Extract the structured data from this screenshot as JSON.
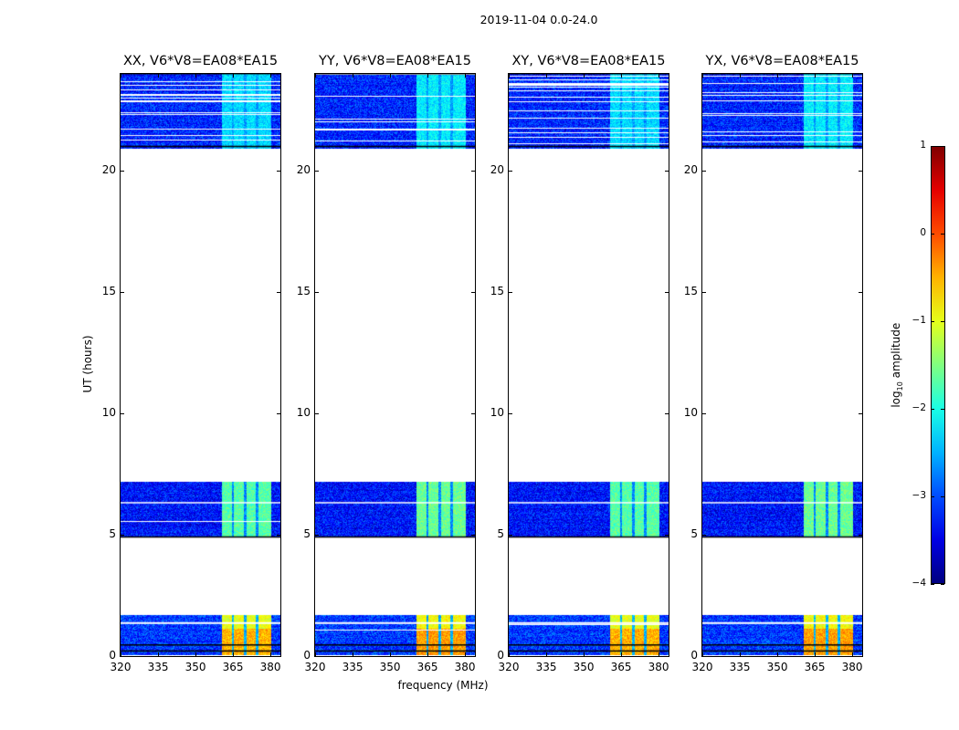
{
  "suptitle": "2019-11-04 0.0-24.0",
  "chart_data": {
    "type": "heatmap",
    "title": "2019-11-04 0.0-24.0",
    "xlabel": "frequency (MHz)",
    "ylabel": "UT (hours)",
    "xlim": [
      320,
      384
    ],
    "ylim": [
      0,
      24
    ],
    "xticks": [
      320,
      335,
      350,
      365,
      380
    ],
    "yticks": [
      0,
      5,
      10,
      15,
      20
    ],
    "panels": [
      {
        "title": "XX, V6*V8=EA08*EA15"
      },
      {
        "title": "YY, V6*V8=EA08*EA15"
      },
      {
        "title": "XY, V6*V8=EA08*EA15"
      },
      {
        "title": "YX, V6*V8=EA08*EA15"
      }
    ],
    "data_blocks": [
      {
        "start_hr": 0.05,
        "end_hr": 1.7,
        "background_log_amp": -3.1,
        "rfi_log_amp": -1.0
      },
      {
        "start_hr": 4.9,
        "end_hr": 7.2,
        "background_log_amp": -3.3,
        "rfi_log_amp": -1.7
      },
      {
        "start_hr": 20.9,
        "end_hr": 24.0,
        "background_log_amp": -3.2,
        "rfi_log_amp": -2.3
      }
    ],
    "rfi_band_mhz": [
      360.5,
      380
    ],
    "colorbar": {
      "label": "log10 amplitude",
      "label_main": "log",
      "label_sub": "10",
      "label_rest": " amplitude",
      "range": [
        -4,
        1
      ],
      "ticks": [
        "1",
        "0",
        "−1",
        "−2",
        "−3",
        "−4"
      ],
      "colormap": "jet"
    }
  }
}
